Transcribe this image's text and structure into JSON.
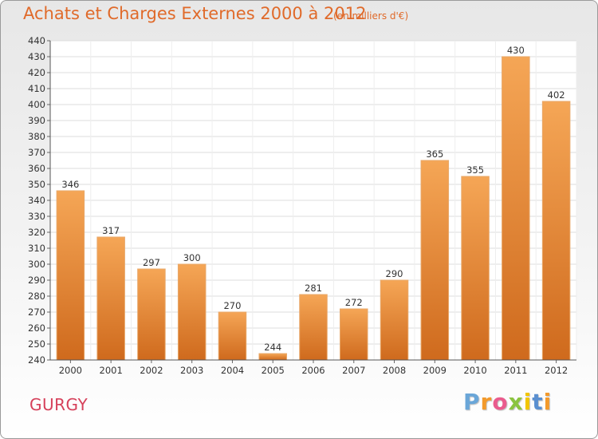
{
  "chart_data": {
    "type": "bar",
    "title": "Achats et Charges Externes 2000 à 2012",
    "subtitle": "(en milliers d'€)",
    "categories": [
      "2000",
      "2001",
      "2002",
      "2003",
      "2004",
      "2005",
      "2006",
      "2007",
      "2008",
      "2009",
      "2010",
      "2011",
      "2012"
    ],
    "values": [
      346,
      317,
      297,
      300,
      270,
      244,
      281,
      272,
      290,
      365,
      355,
      430,
      402
    ],
    "ylim": [
      240,
      440
    ],
    "ytick_step": 10,
    "grid": true,
    "bar_color_top": "#f5a656",
    "bar_color_bottom": "#cf6a1d"
  },
  "footer": {
    "town": "GURGY",
    "logo_letters": [
      "P",
      "r",
      "o",
      "x",
      "i",
      "t",
      "i"
    ],
    "logo_colors": [
      "#6aa6d8",
      "#f39a2b",
      "#ea5b8d",
      "#8bc43f",
      "#f2c500",
      "#5a8fd0",
      "#f39a2b"
    ]
  }
}
